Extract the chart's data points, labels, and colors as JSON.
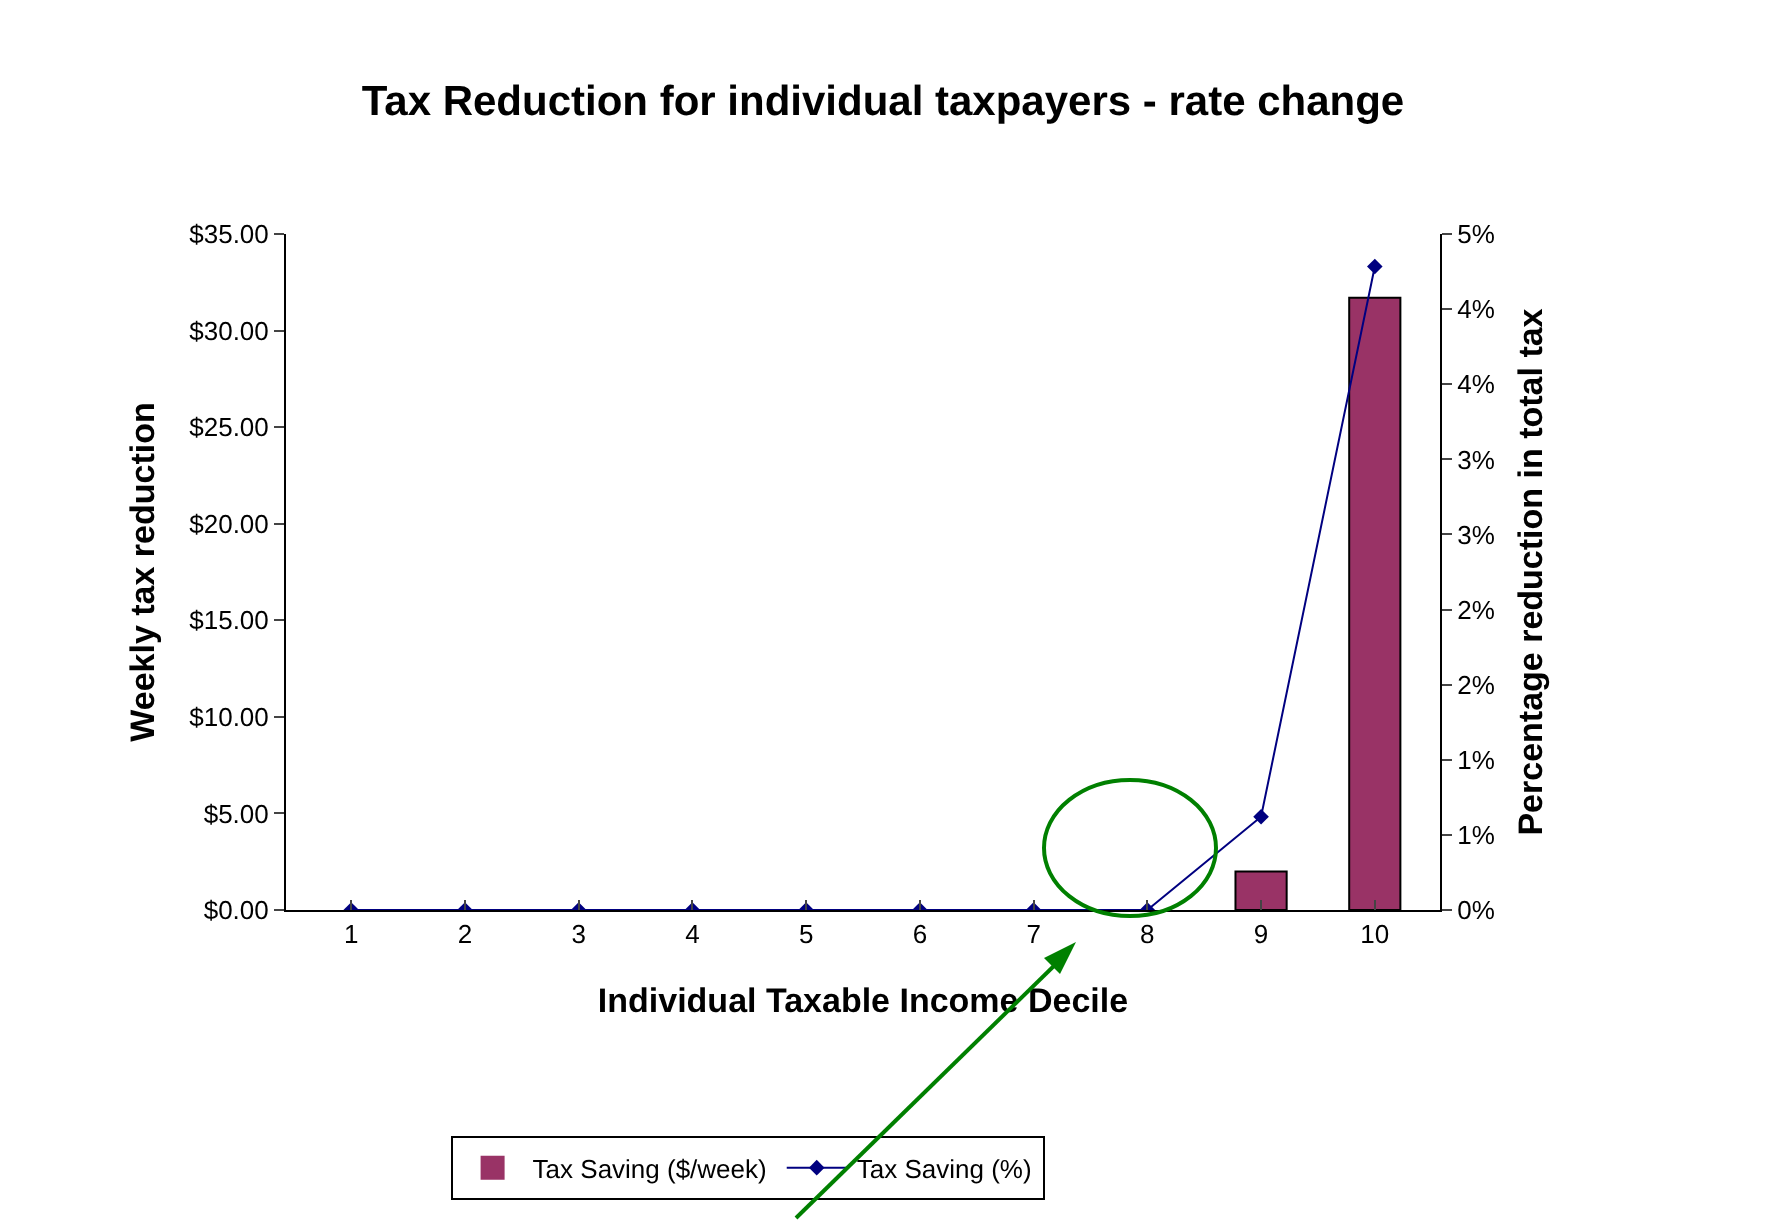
{
  "chart_data": {
    "type": "bar",
    "title": "Tax Reduction for individual taxpayers - rate change",
    "xlabel": "Individual Taxable Income Decile",
    "ylabel": "Weekly tax reduction",
    "y2label": "Percentage reduction in total tax",
    "categories": [
      "1",
      "2",
      "3",
      "4",
      "5",
      "6",
      "7",
      "8",
      "9",
      "10"
    ],
    "series": [
      {
        "name": "Tax Saving ($/week)",
        "color": "#993366",
        "values": [
          0,
          0,
          0,
          0,
          0,
          0,
          0,
          0,
          2.0,
          31.7
        ]
      },
      {
        "name": "Tax Saving (%)",
        "type": "line",
        "axis": "y2",
        "color": "#000080",
        "marker": "diamond",
        "values": [
          0,
          0,
          0,
          0,
          0,
          0,
          0,
          0,
          0.69,
          4.76
        ]
      }
    ],
    "ylim": [
      0,
      35
    ],
    "yticks": [
      {
        "value": 0,
        "label": "$0.00"
      },
      {
        "value": 5,
        "label": "$5.00"
      },
      {
        "value": 10,
        "label": "$10.00"
      },
      {
        "value": 15,
        "label": "$15.00"
      },
      {
        "value": 20,
        "label": "$20.00"
      },
      {
        "value": 25,
        "label": "$25.00"
      },
      {
        "value": 30,
        "label": "$30.00"
      },
      {
        "value": 35,
        "label": "$35.00"
      }
    ],
    "y2lim": [
      0,
      5
    ],
    "y2ticks": [
      {
        "value": 0,
        "label": "0%"
      },
      {
        "value": 0.556,
        "label": "1%"
      },
      {
        "value": 1.111,
        "label": "1%"
      },
      {
        "value": 1.667,
        "label": "2%"
      },
      {
        "value": 2.222,
        "label": "2%"
      },
      {
        "value": 2.778,
        "label": "3%"
      },
      {
        "value": 3.333,
        "label": "3%"
      },
      {
        "value": 3.889,
        "label": "4%"
      },
      {
        "value": 4.444,
        "label": "4%"
      },
      {
        "value": 5,
        "label": "5%"
      }
    ],
    "grid": false,
    "legend": "bottom"
  }
}
